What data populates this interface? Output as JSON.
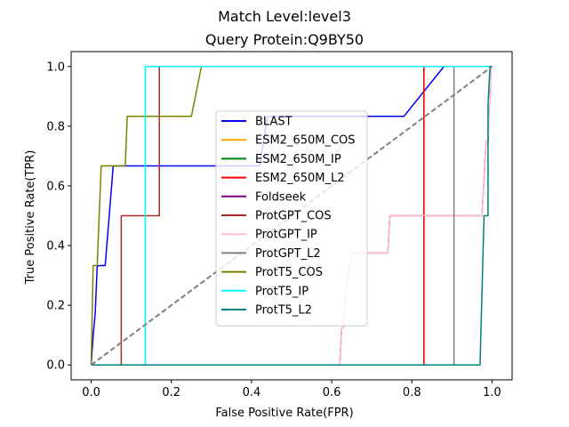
{
  "chart_data": {
    "type": "line",
    "suptitle": "Match Level:level3",
    "title": "Query Protein:Q9BY50",
    "xlabel": "False Positive Rate(FPR)",
    "ylabel": "True Positive Rate(TPR)",
    "xlim": [
      -0.05,
      1.05
    ],
    "ylim": [
      -0.05,
      1.05
    ],
    "x_ticks": [
      0.0,
      0.2,
      0.4,
      0.6,
      0.8,
      1.0
    ],
    "y_ticks": [
      0.0,
      0.2,
      0.4,
      0.6,
      0.8,
      1.0
    ],
    "x_tick_labels": [
      "0.0",
      "0.2",
      "0.4",
      "0.6",
      "0.8",
      "1.0"
    ],
    "y_tick_labels": [
      "0.0",
      "0.2",
      "0.4",
      "0.6",
      "0.8",
      "1.0"
    ],
    "grid": false,
    "legend_position": "center",
    "diagonal": {
      "x": [
        0,
        1
      ],
      "y": [
        0,
        1
      ],
      "color": "#808080",
      "style": "dashed"
    },
    "series": [
      {
        "name": "BLAST",
        "color": "#0000ff",
        "x": [
          0.0,
          0.005,
          0.01,
          0.015,
          0.02,
          0.035,
          0.055,
          0.42,
          0.44,
          0.78,
          0.88,
          1.0
        ],
        "y": [
          0.0,
          0.1,
          0.17,
          0.33,
          0.333,
          0.333,
          0.667,
          0.667,
          0.833,
          0.833,
          1.0,
          1.0
        ]
      },
      {
        "name": "ESM2_650M_COS",
        "color": "#ffa500",
        "x": [
          0.0,
          0.83,
          0.83,
          1.0
        ],
        "y": [
          0.0,
          0.0,
          1.0,
          1.0
        ]
      },
      {
        "name": "ESM2_650M_IP",
        "color": "#008000",
        "x": [
          0.0,
          0.83,
          0.83,
          1.0
        ],
        "y": [
          0.0,
          0.0,
          1.0,
          1.0
        ]
      },
      {
        "name": "ESM2_650M_L2",
        "color": "#ff0000",
        "x": [
          0.0,
          0.83,
          0.83,
          1.0
        ],
        "y": [
          0.0,
          0.0,
          1.0,
          1.0
        ]
      },
      {
        "name": "Foldseek",
        "color": "#800080",
        "x": [
          0.0,
          0.62,
          0.625,
          0.63,
          0.635,
          0.65,
          0.74,
          0.745,
          0.975,
          0.98,
          0.985,
          0.99,
          0.993,
          0.995,
          0.997,
          1.0
        ],
        "y": [
          0.0,
          0.0,
          0.125,
          0.125,
          0.25,
          0.375,
          0.375,
          0.5,
          0.5,
          0.625,
          0.75,
          0.75,
          0.875,
          0.875,
          1.0,
          1.0
        ]
      },
      {
        "name": "ProtGPT_COS",
        "color": "#a52a2a",
        "x": [
          0.0,
          0.075,
          0.075,
          0.17,
          0.17,
          1.0
        ],
        "y": [
          0.0,
          0.0,
          0.5,
          0.5,
          1.0,
          1.0
        ]
      },
      {
        "name": "ProtGPT_IP",
        "color": "#ffc0cb",
        "x": [
          0.0,
          0.62,
          0.625,
          0.63,
          0.635,
          0.65,
          0.74,
          0.745,
          0.975,
          0.98,
          0.985,
          0.99,
          0.993,
          0.995,
          0.997,
          1.0
        ],
        "y": [
          0.0,
          0.0,
          0.125,
          0.125,
          0.25,
          0.375,
          0.375,
          0.5,
          0.5,
          0.625,
          0.75,
          0.75,
          0.875,
          0.875,
          1.0,
          1.0
        ]
      },
      {
        "name": "ProtGPT_L2",
        "color": "#808080",
        "x": [
          0.0,
          0.905,
          0.905,
          1.0
        ],
        "y": [
          0.0,
          0.0,
          1.0,
          1.0
        ]
      },
      {
        "name": "ProtT5_COS",
        "color": "#808000",
        "x": [
          0.0,
          0.005,
          0.015,
          0.025,
          0.085,
          0.09,
          0.25,
          0.275,
          1.0
        ],
        "y": [
          0.0,
          0.333,
          0.333,
          0.667,
          0.667,
          0.833,
          0.833,
          1.0,
          1.0
        ]
      },
      {
        "name": "ProtT5_IP",
        "color": "#00ffff",
        "x": [
          0.0,
          0.135,
          0.135,
          1.0
        ],
        "y": [
          0.0,
          0.0,
          1.0,
          1.0
        ]
      },
      {
        "name": "ProtT5_L2",
        "color": "#008080",
        "x": [
          0.0,
          0.97,
          0.98,
          0.99,
          0.99,
          0.995,
          1.0
        ],
        "y": [
          0.0,
          0.0,
          0.5,
          0.5,
          0.875,
          1.0,
          1.0
        ]
      }
    ]
  }
}
